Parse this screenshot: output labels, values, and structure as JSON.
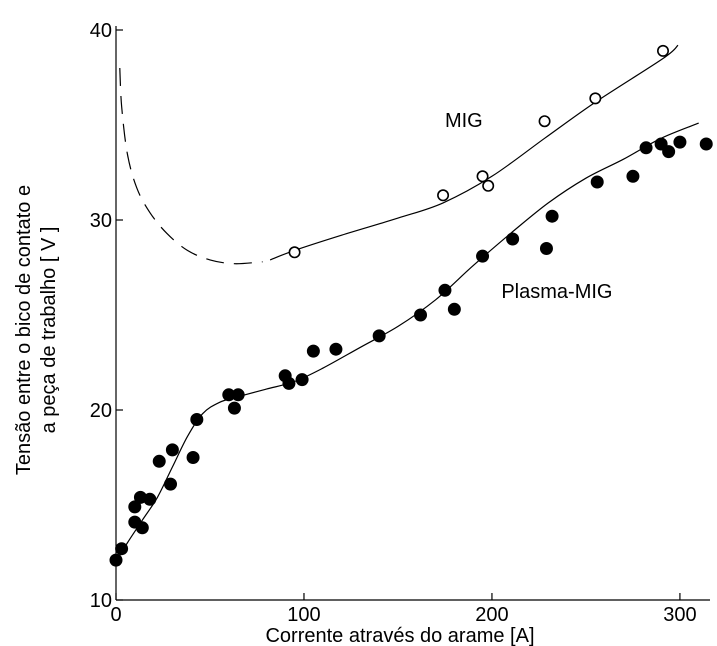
{
  "chart_data": {
    "type": "scatter",
    "xlabel": "Corrente através do arame [A]",
    "ylabel_lines": [
      "Tensão entre o bico de contato e",
      "a peça de trabalho [ V ]"
    ],
    "xlim": [
      0,
      316
    ],
    "ylim": [
      10,
      40
    ],
    "x_ticks": [
      0,
      100,
      200,
      300
    ],
    "y_ticks": [
      10,
      20,
      30,
      40
    ],
    "grid": false,
    "series": [
      {
        "name": "MIG",
        "marker": "open-circle",
        "points": [
          {
            "x": 95,
            "y": 28.3
          },
          {
            "x": 174,
            "y": 31.3
          },
          {
            "x": 195,
            "y": 32.3
          },
          {
            "x": 198,
            "y": 31.8
          },
          {
            "x": 228,
            "y": 35.2
          },
          {
            "x": 255,
            "y": 36.4
          },
          {
            "x": 291,
            "y": 38.9
          }
        ],
        "fit_dashed": [
          [
            2,
            38
          ],
          [
            3,
            36
          ],
          [
            6,
            33.5
          ],
          [
            11,
            31.7
          ],
          [
            18,
            30.4
          ],
          [
            27,
            29.3
          ],
          [
            38,
            28.4
          ],
          [
            50,
            27.9
          ],
          [
            63,
            27.7
          ],
          [
            78,
            27.8
          ]
        ],
        "fit_solid": [
          [
            82,
            27.9
          ],
          [
            95,
            28.4
          ],
          [
            120,
            29.2
          ],
          [
            150,
            30.1
          ],
          [
            174,
            30.9
          ],
          [
            200,
            32.3
          ],
          [
            228,
            34.3
          ],
          [
            255,
            36.2
          ],
          [
            291,
            38.5
          ],
          [
            299,
            39.2
          ]
        ]
      },
      {
        "name": "Plasma-MIG",
        "marker": "filled-circle",
        "points": [
          {
            "x": 0,
            "y": 12.1
          },
          {
            "x": 3,
            "y": 12.7
          },
          {
            "x": 10,
            "y": 14.1
          },
          {
            "x": 10,
            "y": 14.9
          },
          {
            "x": 13,
            "y": 15.4
          },
          {
            "x": 14,
            "y": 13.8
          },
          {
            "x": 18,
            "y": 15.3
          },
          {
            "x": 23,
            "y": 17.3
          },
          {
            "x": 29,
            "y": 16.1
          },
          {
            "x": 30,
            "y": 17.9
          },
          {
            "x": 41,
            "y": 17.5
          },
          {
            "x": 43,
            "y": 19.5
          },
          {
            "x": 60,
            "y": 20.8
          },
          {
            "x": 63,
            "y": 20.1
          },
          {
            "x": 65,
            "y": 20.8
          },
          {
            "x": 90,
            "y": 21.8
          },
          {
            "x": 92,
            "y": 21.4
          },
          {
            "x": 99,
            "y": 21.6
          },
          {
            "x": 105,
            "y": 23.1
          },
          {
            "x": 117,
            "y": 23.2
          },
          {
            "x": 140,
            "y": 23.9
          },
          {
            "x": 162,
            "y": 25.0
          },
          {
            "x": 175,
            "y": 26.3
          },
          {
            "x": 180,
            "y": 25.3
          },
          {
            "x": 195,
            "y": 28.1
          },
          {
            "x": 211,
            "y": 29.0
          },
          {
            "x": 229,
            "y": 28.5
          },
          {
            "x": 232,
            "y": 30.2
          },
          {
            "x": 256,
            "y": 32.0
          },
          {
            "x": 275,
            "y": 32.3
          },
          {
            "x": 282,
            "y": 33.8
          },
          {
            "x": 290,
            "y": 34.0
          },
          {
            "x": 294,
            "y": 33.6
          },
          {
            "x": 300,
            "y": 34.1
          },
          {
            "x": 314,
            "y": 34.0
          }
        ],
        "fit_solid": [
          [
            0,
            12.0
          ],
          [
            6,
            13.0
          ],
          [
            14,
            14.2
          ],
          [
            22,
            15.4
          ],
          [
            30,
            17.0
          ],
          [
            38,
            18.6
          ],
          [
            46,
            19.8
          ],
          [
            55,
            20.4
          ],
          [
            65,
            20.7
          ],
          [
            80,
            21.1
          ],
          [
            95,
            21.5
          ],
          [
            110,
            22.2
          ],
          [
            130,
            23.3
          ],
          [
            150,
            24.4
          ],
          [
            170,
            25.8
          ],
          [
            190,
            27.6
          ],
          [
            210,
            29.3
          ],
          [
            230,
            30.9
          ],
          [
            250,
            32.2
          ],
          [
            270,
            33.2
          ],
          [
            290,
            34.3
          ],
          [
            310,
            35.1
          ]
        ]
      }
    ],
    "annotations": [
      {
        "text": "MIG",
        "x": 175,
        "y": 34.9
      },
      {
        "text": "Plasma-MIG",
        "x": 205,
        "y": 25.9
      }
    ]
  }
}
